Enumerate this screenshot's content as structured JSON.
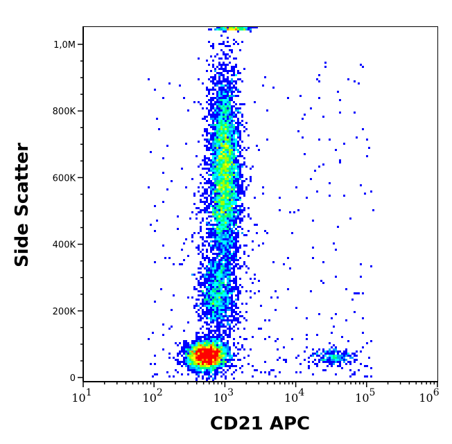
{
  "chart_data": {
    "type": "heatmap",
    "subtype": "flow-cytometry density dot plot",
    "title": "",
    "xlabel": "CD21 APC",
    "ylabel": "Side Scatter",
    "x_scale": "log",
    "xlim": [
      10,
      1050000
    ],
    "ylim": [
      -12000,
      1054000
    ],
    "x_ticks": [
      {
        "base": "10",
        "exp": "1",
        "value": 10
      },
      {
        "base": "10",
        "exp": "2",
        "value": 100
      },
      {
        "base": "10",
        "exp": "3",
        "value": 1000
      },
      {
        "base": "10",
        "exp": "4",
        "value": 10000
      },
      {
        "base": "10",
        "exp": "5",
        "value": 100000
      },
      {
        "base": "10",
        "exp": "6",
        "value": 1000000
      }
    ],
    "y_ticks": [
      {
        "label": "0",
        "value": 0
      },
      {
        "label": "200K",
        "value": 200000
      },
      {
        "label": "400K",
        "value": 400000
      },
      {
        "label": "600K",
        "value": 600000
      },
      {
        "label": "800K",
        "value": 800000
      },
      {
        "label": "1,0M",
        "value": 1000000
      }
    ],
    "grid": false,
    "colormap": [
      "#0000ff",
      "#00a0ff",
      "#00ffff",
      "#00ff80",
      "#a0ff00",
      "#ffff00",
      "#ff8000",
      "#ff0000"
    ],
    "populations": [
      {
        "x_center": 550,
        "x_log_sd": 0.14,
        "y_center": 65000,
        "y_sd": 22000,
        "events": 3200
      },
      {
        "x_center": 750,
        "x_log_sd": 0.12,
        "y_center": 250000,
        "y_sd": 50000,
        "events": 900
      },
      {
        "x_center": 1000,
        "x_log_sd": 0.1,
        "y_center": 630000,
        "y_sd": 140000,
        "events": 4200
      },
      {
        "x_center": 900,
        "x_log_sd": 0.17,
        "y_center": 420000,
        "y_sd": 230000,
        "events": 1400
      },
      {
        "x_center": 35000,
        "x_log_sd": 0.16,
        "y_center": 62000,
        "y_sd": 12000,
        "events": 260
      },
      {
        "x_center": 1300,
        "x_log_sd": 0.12,
        "y_center": 1050000,
        "y_sd": 0,
        "events": 250
      }
    ]
  }
}
